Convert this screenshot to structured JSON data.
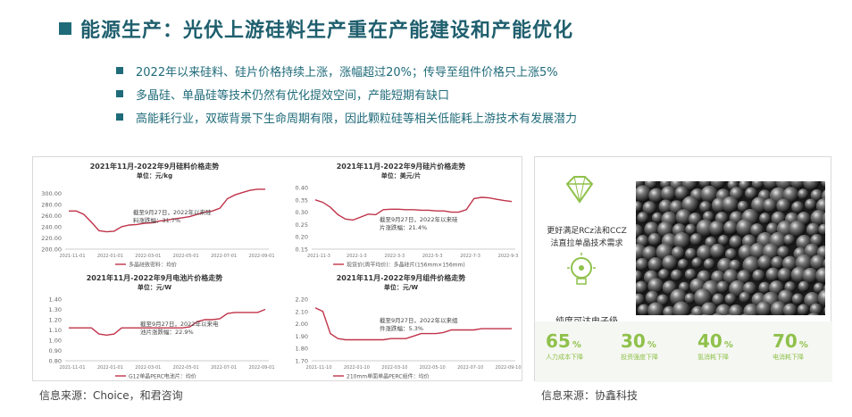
{
  "header": {
    "title": "能源生产：光伏上游硅料生产重在产能建设和产能优化",
    "bullets": [
      "2022年以来硅料、硅片价格持续上涨，涨幅超过20%；传导至组件价格只上涨5%",
      "多晶硅、单晶硅等技术仍然有优化提效空间，产能短期有缺口",
      "高能耗行业，双碳背景下生命周期有限，因此颗粒硅等相关低能耗上游技术有发展潜力"
    ]
  },
  "sources": {
    "left": "信息来源：Choice，和君咨询",
    "right": "信息来源：协鑫科技"
  },
  "right_panel": {
    "text1": [
      "更好满足RCz法和CCZ",
      "法直拉单晶技术需求"
    ],
    "text2": "纯度可达电子级",
    "stats": [
      {
        "value": "65",
        "unit": "%",
        "label": "人力成本下降"
      },
      {
        "value": "30",
        "unit": "%",
        "label": "投资强度下降"
      },
      {
        "value": "40",
        "unit": "%",
        "label": "氢消耗下降"
      },
      {
        "value": "70",
        "unit": "%",
        "label": "电消耗下降"
      }
    ],
    "colors": {
      "accent": "#8fc14b",
      "line": "#c0334a"
    }
  },
  "chart_data": [
    {
      "type": "line",
      "title": "2021年11月-2022年9月硅料价格走势",
      "subtitle": "单位：元/kg",
      "yticks": [
        "300.00",
        "280.00",
        "260.00",
        "240.00",
        "220.00",
        "200.00"
      ],
      "ylim": [
        200,
        310
      ],
      "xticks": [
        "2021-11-01",
        "2022-01-01",
        "2022-03-01",
        "2022-05-01",
        "2022-07-01",
        "2022-09-01"
      ],
      "series": [
        {
          "name": "多晶硅致密料：均价",
          "values": [
            268,
            268,
            262,
            248,
            233,
            231,
            232,
            240,
            243,
            244,
            246,
            247,
            250,
            252,
            254,
            256,
            258,
            262,
            266,
            268,
            273,
            290,
            297,
            301,
            305,
            307,
            307
          ]
        }
      ],
      "annotation": [
        "截至9月27日，2022年以来硅",
        "料涨跌幅：31.7%"
      ]
    },
    {
      "type": "line",
      "title": "2021年11月-2022年9月硅片价格走势",
      "subtitle": "单位：美元/片",
      "yticks": [
        "0.40",
        "0.35",
        "0.30",
        "0.25",
        "0.20",
        "0.15"
      ],
      "ylim": [
        0.15,
        0.4
      ],
      "xticks": [
        "2021-11-3",
        "2022-1-3",
        "2022-3-3",
        "2022-5-3",
        "2022-7-3",
        "2022-9-3"
      ],
      "series": [
        {
          "name": "现货价(周平均价)：多晶硅片(156mm×156mm)",
          "values": [
            0.35,
            0.34,
            0.32,
            0.29,
            0.272,
            0.268,
            0.28,
            0.292,
            0.29,
            0.31,
            0.312,
            0.312,
            0.31,
            0.31,
            0.308,
            0.308,
            0.305,
            0.305,
            0.3,
            0.3,
            0.31,
            0.355,
            0.36,
            0.358,
            0.352,
            0.347,
            0.343
          ]
        }
      ],
      "annotation": [
        "截至9月27日，2022年以来硅",
        "片涨跌幅：21.4%"
      ]
    },
    {
      "type": "line",
      "title": "2021年11月-2022年9月电池片价格走势",
      "subtitle": "单位：元/W",
      "yticks": [
        "1.40",
        "1.30",
        "1.20",
        "1.10",
        "1.00",
        "0.90",
        "0.80"
      ],
      "ylim": [
        0.8,
        1.4
      ],
      "xticks": [
        "2021-11-01",
        "2022-01-01",
        "2022-03-01",
        "2022-05-01",
        "2022-07-01",
        "2022-09-01"
      ],
      "series": [
        {
          "name": "G12单晶PERC电池片：均价",
          "values": [
            1.12,
            1.12,
            1.12,
            1.12,
            1.06,
            1.05,
            1.06,
            1.12,
            1.12,
            1.12,
            1.12,
            1.12,
            1.12,
            1.12,
            1.12,
            1.12,
            1.13,
            1.18,
            1.2,
            1.2,
            1.21,
            1.26,
            1.27,
            1.27,
            1.27,
            1.27,
            1.3
          ]
        }
      ],
      "annotation": [
        "截至9月27日，2022年以来电",
        "池片涨跌幅：22.9%"
      ]
    },
    {
      "type": "line",
      "title": "2021年11月-2022年9月组件价格走势",
      "subtitle": "单位：元/W",
      "yticks": [
        "2.20",
        "2.10",
        "2.00",
        "1.90",
        "1.80",
        "1.70"
      ],
      "ylim": [
        1.7,
        2.2
      ],
      "xticks": [
        "2021-11-10",
        "2022-01-10",
        "2022-03-10",
        "2022-05-10",
        "2022-07-10",
        "2022-09-10"
      ],
      "series": [
        {
          "name": "210mm单面单晶PERC组件：均价",
          "values": [
            2.13,
            2.1,
            1.92,
            1.88,
            1.87,
            1.87,
            1.87,
            1.87,
            1.87,
            1.87,
            1.88,
            1.88,
            1.88,
            1.9,
            1.92,
            1.92,
            1.92,
            1.93,
            1.95,
            1.95,
            1.95,
            1.95,
            1.96,
            1.96,
            1.96,
            1.96,
            1.96
          ]
        }
      ],
      "annotation": [
        "截至9月27日，2022年以来组",
        "件涨跌幅：5.3%"
      ]
    }
  ]
}
